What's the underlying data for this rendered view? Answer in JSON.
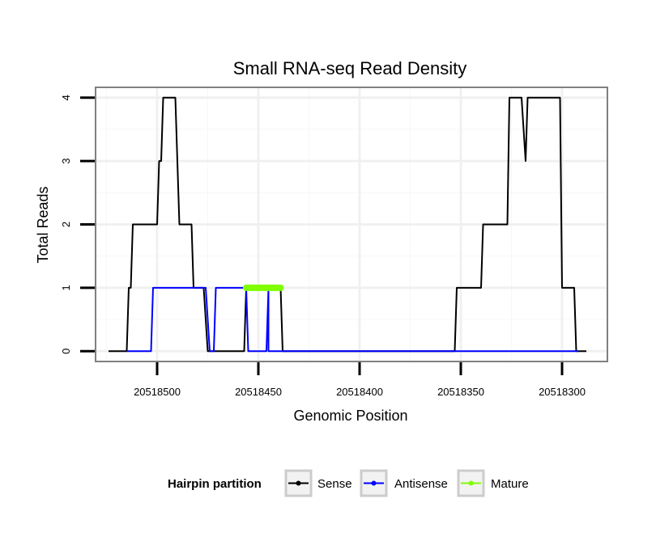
{
  "chart_data": {
    "type": "line",
    "title": "Small RNA-seq Read Density",
    "xlabel": "Genomic Position",
    "ylabel": "Total Reads",
    "x_reversed": true,
    "xlim": [
      20518530,
      20518278
    ],
    "ylim": [
      -0.15,
      4.15
    ],
    "x_ticks": [
      20518500,
      20518450,
      20518400,
      20518350,
      20518300
    ],
    "x_tick_labels": [
      "20518500",
      "20518450",
      "20518400",
      "20518350",
      "20518300"
    ],
    "y_ticks": [
      0,
      1,
      2,
      3,
      4
    ],
    "y_tick_labels": [
      "0",
      "1",
      "2",
      "3",
      "4"
    ],
    "grid": true,
    "legend": {
      "title": "Hairpin partition",
      "position": "bottom",
      "entries": [
        "Sense",
        "Antisense",
        "Mature"
      ]
    },
    "series": [
      {
        "name": "Sense",
        "color": "#000000",
        "width": 2,
        "points": [
          [
            20518524,
            0
          ],
          [
            20518515,
            0
          ],
          [
            20518514,
            1
          ],
          [
            20518513,
            1
          ],
          [
            20518512,
            2
          ],
          [
            20518500,
            2
          ],
          [
            20518499,
            3
          ],
          [
            20518498,
            3
          ],
          [
            20518497,
            4
          ],
          [
            20518491,
            4
          ],
          [
            20518489,
            2
          ],
          [
            20518483,
            2
          ],
          [
            20518482,
            1
          ],
          [
            20518477,
            1
          ],
          [
            20518475,
            0
          ],
          [
            20518457,
            0
          ],
          [
            20518456,
            1
          ],
          [
            20518439,
            1
          ],
          [
            20518438,
            0
          ],
          [
            20518353,
            0
          ],
          [
            20518352,
            1
          ],
          [
            20518340,
            1
          ],
          [
            20518339,
            2
          ],
          [
            20518327,
            2
          ],
          [
            20518326,
            4
          ],
          [
            20518320,
            4
          ],
          [
            20518318,
            3
          ],
          [
            20518317,
            4
          ],
          [
            20518301,
            4
          ],
          [
            20518300,
            1
          ],
          [
            20518294,
            1
          ],
          [
            20518293,
            0
          ],
          [
            20518288,
            0
          ]
        ]
      },
      {
        "name": "Antisense",
        "color": "#0000ff",
        "width": 2,
        "points": [
          [
            20518515,
            0
          ],
          [
            20518503,
            0
          ],
          [
            20518502,
            1
          ],
          [
            20518476,
            1
          ],
          [
            20518474,
            0
          ],
          [
            20518472,
            0
          ],
          [
            20518471,
            1
          ],
          [
            20518456,
            1
          ],
          [
            20518455,
            0
          ],
          [
            20518446,
            0
          ],
          [
            20518445,
            1
          ],
          [
            20518445,
            0
          ],
          [
            20518292,
            0
          ]
        ]
      },
      {
        "name": "Mature",
        "color": "#7fff00",
        "width": 8,
        "points": [
          [
            20518456,
            1
          ],
          [
            20518439,
            1
          ]
        ]
      }
    ]
  }
}
